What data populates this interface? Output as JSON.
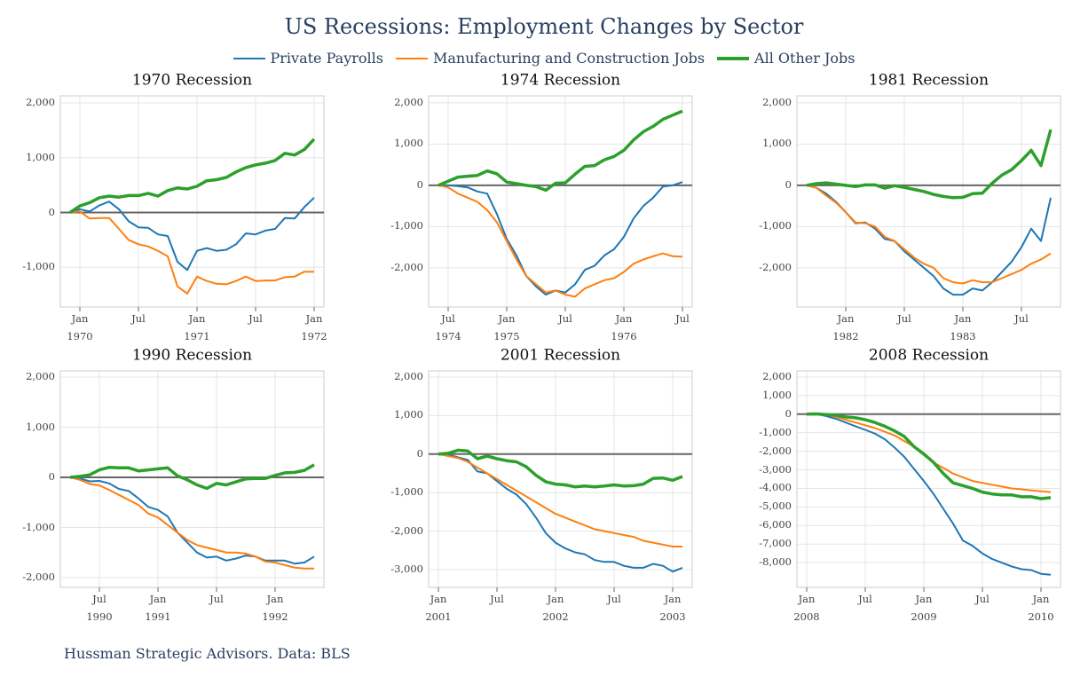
{
  "title": "US Recessions: Employment Changes by Sector",
  "legend": {
    "series": [
      {
        "name": "Private Payrolls",
        "color": "#1f77b4"
      },
      {
        "name": "Manufacturing and Construction Jobs",
        "color": "#ff7f0e"
      },
      {
        "name": "All Other Jobs",
        "color": "#2ca02c"
      }
    ]
  },
  "caption": "Hussman Strategic Advisors. Data: BLS",
  "chart_data": [
    {
      "type": "line",
      "title": "1970 Recession",
      "grid": true,
      "x": [
        "1969-12",
        "1970-01",
        "1970-02",
        "1970-03",
        "1970-04",
        "1970-05",
        "1970-06",
        "1970-07",
        "1970-08",
        "1970-09",
        "1970-10",
        "1970-11",
        "1970-12",
        "1971-01",
        "1971-02",
        "1971-03",
        "1971-04",
        "1971-05",
        "1971-06",
        "1971-07",
        "1971-08",
        "1971-09",
        "1971-10",
        "1971-11",
        "1971-12",
        "1972-01"
      ],
      "xlim": [
        "1969-11",
        "1972-02"
      ],
      "xticks": [
        {
          "value": "1970-01",
          "label": "Jan\n1970"
        },
        {
          "value": "1970-07",
          "label": "Jul"
        },
        {
          "value": "1971-01",
          "label": "Jan\n1971"
        },
        {
          "value": "1971-07",
          "label": "Jul"
        },
        {
          "value": "1972-01",
          "label": "Jan\n1972"
        }
      ],
      "ylim": [
        -1725,
        2130
      ],
      "yticks": [
        {
          "value": -1000,
          "label": "-1,000"
        },
        0,
        {
          "value": 1000,
          "label": "1,000"
        },
        {
          "value": 2000,
          "label": "2,000"
        }
      ],
      "series": [
        {
          "values": [
            0,
            60,
            20,
            130,
            200,
            60,
            -160,
            -270,
            -280,
            -400,
            -430,
            -900,
            -1050,
            -700,
            -650,
            -700,
            -680,
            -580,
            -380,
            -400,
            -330,
            -300,
            -100,
            -110,
            100,
            270
          ]
        },
        {
          "values": [
            0,
            20,
            -110,
            -100,
            -100,
            -300,
            -500,
            -580,
            -620,
            -700,
            -800,
            -1350,
            -1480,
            -1170,
            -1250,
            -1300,
            -1310,
            -1250,
            -1170,
            -1250,
            -1240,
            -1240,
            -1180,
            -1170,
            -1080,
            -1080
          ]
        },
        {
          "values": [
            0,
            120,
            180,
            270,
            300,
            280,
            310,
            310,
            350,
            300,
            400,
            450,
            430,
            480,
            580,
            600,
            640,
            740,
            820,
            870,
            900,
            950,
            1080,
            1050,
            1150,
            1340
          ]
        }
      ]
    },
    {
      "type": "line",
      "title": "1974 Recession",
      "grid": true,
      "x": [
        "1974-06",
        "1974-07",
        "1974-08",
        "1974-09",
        "1974-10",
        "1974-11",
        "1974-12",
        "1975-01",
        "1975-02",
        "1975-03",
        "1975-04",
        "1975-05",
        "1975-06",
        "1975-07",
        "1975-08",
        "1975-09",
        "1975-10",
        "1975-11",
        "1975-12",
        "1976-01",
        "1976-02",
        "1976-03",
        "1976-04",
        "1976-05",
        "1976-06",
        "1976-07"
      ],
      "xlim": [
        "1974-05",
        "1976-08"
      ],
      "xticks": [
        {
          "value": "1974-07",
          "label": "Jul\n1974"
        },
        {
          "value": "1975-01",
          "label": "Jan\n1975"
        },
        {
          "value": "1975-07",
          "label": "Jul"
        },
        {
          "value": "1976-01",
          "label": "Jan\n1976"
        },
        {
          "value": "1976-07",
          "label": "Jul"
        }
      ],
      "ylim": [
        -2950,
        2170
      ],
      "yticks": [
        {
          "value": -2000,
          "label": "-2,000"
        },
        {
          "value": -1000,
          "label": "-1,000"
        },
        0,
        {
          "value": 1000,
          "label": "1,000"
        },
        {
          "value": 2000,
          "label": "2,000"
        }
      ],
      "series": [
        {
          "values": [
            0,
            0,
            -20,
            -50,
            -150,
            -200,
            -700,
            -1300,
            -1700,
            -2200,
            -2450,
            -2650,
            -2550,
            -2600,
            -2400,
            -2050,
            -1950,
            -1700,
            -1550,
            -1250,
            -800,
            -500,
            -300,
            -30,
            0,
            80
          ]
        },
        {
          "values": [
            0,
            -50,
            -200,
            -300,
            -400,
            -600,
            -900,
            -1350,
            -1800,
            -2200,
            -2400,
            -2600,
            -2550,
            -2650,
            -2700,
            -2500,
            -2400,
            -2300,
            -2250,
            -2100,
            -1900,
            -1800,
            -1720,
            -1650,
            -1720,
            -1730
          ]
        },
        {
          "values": [
            0,
            100,
            200,
            220,
            240,
            350,
            280,
            80,
            40,
            0,
            -30,
            -120,
            50,
            60,
            270,
            460,
            480,
            620,
            700,
            850,
            1100,
            1300,
            1430,
            1600,
            1700,
            1800
          ]
        }
      ]
    },
    {
      "type": "line",
      "title": "1981 Recession",
      "grid": true,
      "x": [
        "1981-09",
        "1981-10",
        "1981-11",
        "1981-12",
        "1982-01",
        "1982-02",
        "1982-03",
        "1982-04",
        "1982-05",
        "1982-06",
        "1982-07",
        "1982-08",
        "1982-09",
        "1982-10",
        "1982-11",
        "1982-12",
        "1983-01",
        "1983-02",
        "1983-03",
        "1983-04",
        "1983-05",
        "1983-06",
        "1983-07",
        "1983-08",
        "1983-09",
        "1983-10"
      ],
      "xlim": [
        "1981-08",
        "1983-11"
      ],
      "xticks": [
        {
          "value": "1982-01",
          "label": "Jan\n1982"
        },
        {
          "value": "1982-07",
          "label": "Jul"
        },
        {
          "value": "1983-01",
          "label": "Jan\n1983"
        },
        {
          "value": "1983-07",
          "label": "Jul"
        }
      ],
      "ylim": [
        -2950,
        2170
      ],
      "yticks": [
        {
          "value": -2000,
          "label": "-2,000"
        },
        {
          "value": -1000,
          "label": "-1,000"
        },
        0,
        {
          "value": 1000,
          "label": "1,000"
        },
        {
          "value": 2000,
          "label": "2,000"
        }
      ],
      "series": [
        {
          "values": [
            0,
            -60,
            -200,
            -400,
            -650,
            -920,
            -900,
            -1050,
            -1300,
            -1350,
            -1600,
            -1800,
            -2000,
            -2200,
            -2500,
            -2650,
            -2650,
            -2500,
            -2550,
            -2350,
            -2100,
            -1850,
            -1500,
            -1050,
            -1350,
            -300
          ]
        },
        {
          "values": [
            0,
            -60,
            -250,
            -420,
            -650,
            -900,
            -920,
            -1000,
            -1250,
            -1350,
            -1550,
            -1750,
            -1900,
            -2000,
            -2250,
            -2350,
            -2380,
            -2300,
            -2350,
            -2350,
            -2250,
            -2150,
            -2050,
            -1900,
            -1800,
            -1650
          ]
        },
        {
          "values": [
            0,
            40,
            60,
            30,
            0,
            -30,
            10,
            10,
            -70,
            -10,
            -50,
            -100,
            -150,
            -220,
            -270,
            -300,
            -290,
            -200,
            -190,
            50,
            250,
            380,
            600,
            850,
            480,
            1350
          ]
        }
      ]
    },
    {
      "type": "line",
      "title": "1990 Recession",
      "grid": true,
      "x": [
        "1990-04",
        "1990-05",
        "1990-06",
        "1990-07",
        "1990-08",
        "1990-09",
        "1990-10",
        "1990-11",
        "1990-12",
        "1991-01",
        "1991-02",
        "1991-03",
        "1991-04",
        "1991-05",
        "1991-06",
        "1991-07",
        "1991-08",
        "1991-09",
        "1991-10",
        "1991-11",
        "1991-12",
        "1992-01",
        "1992-02",
        "1992-03",
        "1992-04",
        "1992-05"
      ],
      "xlim": [
        "1990-03",
        "1992-06"
      ],
      "xticks": [
        {
          "value": "1990-07",
          "label": "Jul\n1990"
        },
        {
          "value": "1991-01",
          "label": "Jan\n1991"
        },
        {
          "value": "1991-07",
          "label": "Jul"
        },
        {
          "value": "1992-01",
          "label": "Jan\n1992"
        }
      ],
      "ylim": [
        -2195,
        2125
      ],
      "yticks": [
        {
          "value": -2000,
          "label": "-2,000"
        },
        {
          "value": -1000,
          "label": "-1,000"
        },
        0,
        {
          "value": 1000,
          "label": "1,000"
        },
        {
          "value": 2000,
          "label": "2,000"
        }
      ],
      "series": [
        {
          "values": [
            0,
            -20,
            -80,
            -70,
            -120,
            -230,
            -270,
            -420,
            -590,
            -650,
            -780,
            -1100,
            -1300,
            -1500,
            -1600,
            -1580,
            -1660,
            -1620,
            -1560,
            -1580,
            -1660,
            -1660,
            -1660,
            -1720,
            -1700,
            -1580
          ]
        },
        {
          "values": [
            0,
            -50,
            -130,
            -160,
            -250,
            -350,
            -450,
            -550,
            -720,
            -800,
            -950,
            -1100,
            -1250,
            -1350,
            -1400,
            -1450,
            -1500,
            -1500,
            -1520,
            -1580,
            -1680,
            -1700,
            -1750,
            -1800,
            -1820,
            -1820
          ]
        },
        {
          "values": [
            0,
            20,
            50,
            150,
            200,
            190,
            190,
            130,
            150,
            170,
            190,
            30,
            -50,
            -150,
            -220,
            -120,
            -150,
            -90,
            -30,
            -20,
            -20,
            40,
            90,
            100,
            140,
            250
          ]
        }
      ]
    },
    {
      "type": "line",
      "title": "2001 Recession",
      "grid": true,
      "x": [
        "2001-01",
        "2001-02",
        "2001-03",
        "2001-04",
        "2001-05",
        "2001-06",
        "2001-07",
        "2001-08",
        "2001-09",
        "2001-10",
        "2001-11",
        "2001-12",
        "2002-01",
        "2002-02",
        "2002-03",
        "2002-04",
        "2002-05",
        "2002-06",
        "2002-07",
        "2002-08",
        "2002-09",
        "2002-10",
        "2002-11",
        "2002-12",
        "2003-01",
        "2003-02"
      ],
      "xlim": [
        "2000-12",
        "2003-03"
      ],
      "xticks": [
        {
          "value": "2001-01",
          "label": "Jan\n2001"
        },
        {
          "value": "2001-07",
          "label": "Jul"
        },
        {
          "value": "2002-01",
          "label": "Jan\n2002"
        },
        {
          "value": "2002-07",
          "label": "Jul"
        },
        {
          "value": "2003-01",
          "label": "Jan\n2003"
        }
      ],
      "ylim": [
        -3460,
        2160
      ],
      "yticks": [
        {
          "value": -3000,
          "label": "-3,000"
        },
        {
          "value": -2000,
          "label": "-2,000"
        },
        {
          "value": -1000,
          "label": "-1,000"
        },
        0,
        {
          "value": 1000,
          "label": "1,000"
        },
        {
          "value": 2000,
          "label": "2,000"
        }
      ],
      "series": [
        {
          "values": [
            0,
            -20,
            -80,
            -150,
            -450,
            -500,
            -700,
            -900,
            -1050,
            -1300,
            -1650,
            -2050,
            -2300,
            -2450,
            -2550,
            -2600,
            -2750,
            -2800,
            -2800,
            -2900,
            -2950,
            -2950,
            -2850,
            -2900,
            -3050,
            -2950
          ]
        },
        {
          "values": [
            0,
            -50,
            -100,
            -200,
            -350,
            -500,
            -650,
            -800,
            -950,
            -1100,
            -1250,
            -1400,
            -1550,
            -1650,
            -1750,
            -1850,
            -1950,
            -2000,
            -2050,
            -2100,
            -2150,
            -2250,
            -2300,
            -2350,
            -2400,
            -2400
          ]
        },
        {
          "values": [
            0,
            20,
            100,
            80,
            -120,
            -50,
            -120,
            -170,
            -200,
            -330,
            -550,
            -720,
            -780,
            -800,
            -850,
            -830,
            -850,
            -830,
            -800,
            -830,
            -820,
            -780,
            -630,
            -620,
            -680,
            -580
          ]
        }
      ]
    },
    {
      "type": "line",
      "title": "2008 Recession",
      "grid": true,
      "x": [
        "2008-01",
        "2008-02",
        "2008-03",
        "2008-04",
        "2008-05",
        "2008-06",
        "2008-07",
        "2008-08",
        "2008-09",
        "2008-10",
        "2008-11",
        "2008-12",
        "2009-01",
        "2009-02",
        "2009-03",
        "2009-04",
        "2009-05",
        "2009-06",
        "2009-07",
        "2009-08",
        "2009-09",
        "2009-10",
        "2009-11",
        "2009-12",
        "2010-01",
        "2010-02"
      ],
      "xlim": [
        "2007-12",
        "2010-03"
      ],
      "xticks": [
        {
          "value": "2008-01",
          "label": "Jan\n2008"
        },
        {
          "value": "2008-07",
          "label": "Jul"
        },
        {
          "value": "2009-01",
          "label": "Jan\n2009"
        },
        {
          "value": "2009-07",
          "label": "Jul"
        },
        {
          "value": "2010-01",
          "label": "Jan\n2010"
        }
      ],
      "ylim": [
        -9330,
        2330
      ],
      "yticks": [
        {
          "value": -8000,
          "label": "-8,000"
        },
        {
          "value": -7000,
          "label": "-7,000"
        },
        {
          "value": -6000,
          "label": "-6,000"
        },
        {
          "value": -5000,
          "label": "-5,000"
        },
        {
          "value": -4000,
          "label": "-4,000"
        },
        {
          "value": -3000,
          "label": "-3,000"
        },
        {
          "value": -2000,
          "label": "-2,000"
        },
        {
          "value": -1000,
          "label": "-1,000"
        },
        0,
        {
          "value": 1000,
          "label": "1,000"
        },
        {
          "value": 2000,
          "label": "2,000"
        }
      ],
      "series": [
        {
          "values": [
            0,
            0,
            -100,
            -250,
            -450,
            -650,
            -850,
            -1050,
            -1350,
            -1800,
            -2300,
            -2950,
            -3600,
            -4300,
            -5100,
            -5900,
            -6800,
            -7100,
            -7500,
            -7800,
            -8000,
            -8200,
            -8350,
            -8400,
            -8600,
            -8650
          ]
        },
        {
          "values": [
            0,
            20,
            -20,
            -150,
            -300,
            -450,
            -600,
            -750,
            -950,
            -1150,
            -1450,
            -1750,
            -2200,
            -2600,
            -2900,
            -3200,
            -3400,
            -3600,
            -3700,
            -3800,
            -3900,
            -4000,
            -4050,
            -4100,
            -4150,
            -4200
          ]
        },
        {
          "values": [
            0,
            10,
            -20,
            -60,
            -150,
            -200,
            -300,
            -450,
            -650,
            -900,
            -1200,
            -1750,
            -2150,
            -2600,
            -3200,
            -3700,
            -3850,
            -4000,
            -4200,
            -4300,
            -4350,
            -4350,
            -4450,
            -4450,
            -4550,
            -4500
          ]
        }
      ]
    }
  ]
}
